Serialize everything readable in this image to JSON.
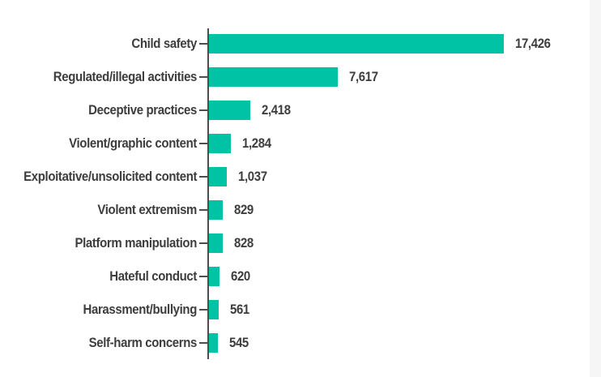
{
  "chart_data": {
    "type": "bar",
    "orientation": "horizontal",
    "title": "",
    "xlabel": "",
    "ylabel": "",
    "grid": false,
    "legend": false,
    "xlim": [
      0,
      18000
    ],
    "categories": [
      "Child safety",
      "Regulated/illegal activities",
      "Deceptive practices",
      "Violent/graphic content",
      "Exploitative/unsolicited content",
      "Violent extremism",
      "Platform manipulation",
      "Hateful conduct",
      "Harassment/bullying",
      "Self-harm concerns"
    ],
    "values": [
      17426,
      7617,
      2418,
      1284,
      1037,
      829,
      828,
      620,
      561,
      545
    ],
    "value_labels": [
      "17,426",
      "7,617",
      "2,418",
      "1,284",
      "1,037",
      "829",
      "828",
      "620",
      "561",
      "545"
    ],
    "colors": {
      "bar": "#00c3a5",
      "axis": "#4d4d4d",
      "label": "#3d3d3d"
    }
  },
  "page": {
    "background": "#ffffff",
    "right_edge": "#f6f6f6"
  }
}
